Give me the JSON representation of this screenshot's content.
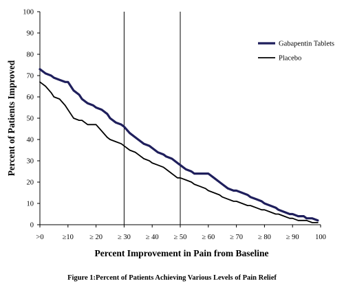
{
  "caption": "Figure 1:Percent of Patients Achieving Various Levels of Pain Relief",
  "chart_data": {
    "type": "line",
    "xlabel": "Percent Improvement in Pain from Baseline",
    "ylabel": "Percent of Patients Improved",
    "xlim": [
      0,
      100
    ],
    "ylim": [
      0,
      100
    ],
    "x_ticks": [
      0,
      10,
      20,
      30,
      40,
      50,
      60,
      70,
      80,
      90,
      100
    ],
    "x_tick_labels": [
      ">0",
      "≥10",
      "≥ 20",
      "≥ 30",
      "≥ 40",
      "≥ 50",
      "≥ 60",
      "≥ 70",
      "≥ 80",
      "≥ 90",
      "100"
    ],
    "y_ticks": [
      0,
      10,
      20,
      30,
      40,
      50,
      60,
      70,
      80,
      90,
      100
    ],
    "reference_lines_x": [
      30,
      50
    ],
    "legend_position": "top-right",
    "series": [
      {
        "name": "Gabapentin Tablets",
        "color": "#1f1f5c",
        "x": [
          0,
          2,
          4,
          5,
          7,
          9,
          10,
          12,
          14,
          15,
          17,
          19,
          20,
          22,
          24,
          25,
          27,
          29,
          30,
          32,
          34,
          35,
          37,
          39,
          40,
          42,
          44,
          45,
          47,
          49,
          50,
          52,
          54,
          55,
          57,
          59,
          60,
          62,
          64,
          65,
          67,
          69,
          70,
          72,
          74,
          75,
          77,
          79,
          80,
          82,
          84,
          85,
          87,
          89,
          90,
          92,
          94,
          95,
          97,
          99
        ],
        "y": [
          73,
          71,
          70,
          69,
          68,
          67,
          67,
          63,
          61,
          59,
          57,
          56,
          55,
          54,
          52,
          50,
          48,
          47,
          46,
          43,
          41,
          40,
          38,
          37,
          36,
          34,
          33,
          32,
          31,
          29,
          28,
          26,
          25,
          24,
          24,
          24,
          24,
          22,
          20,
          19,
          17,
          16,
          16,
          15,
          14,
          13,
          12,
          11,
          10,
          9,
          8,
          7,
          6,
          5,
          5,
          4,
          4,
          3,
          3,
          2
        ]
      },
      {
        "name": "Placebo",
        "color": "#000000",
        "x": [
          0,
          2,
          4,
          5,
          7,
          9,
          10,
          12,
          14,
          15,
          17,
          19,
          20,
          22,
          24,
          25,
          27,
          29,
          30,
          32,
          34,
          35,
          37,
          39,
          40,
          42,
          44,
          45,
          47,
          49,
          50,
          52,
          54,
          55,
          57,
          59,
          60,
          62,
          64,
          65,
          67,
          69,
          70,
          72,
          74,
          75,
          77,
          79,
          80,
          82,
          84,
          85,
          87,
          89,
          90,
          92,
          94,
          95,
          97,
          99
        ],
        "y": [
          67,
          65,
          62,
          60,
          59,
          56,
          54,
          50,
          49,
          49,
          47,
          47,
          47,
          44,
          41,
          40,
          39,
          38,
          37,
          35,
          34,
          33,
          31,
          30,
          29,
          28,
          27,
          26,
          24,
          22,
          22,
          21,
          20,
          19,
          18,
          17,
          16,
          15,
          14,
          13,
          12,
          11,
          11,
          10,
          9,
          9,
          8,
          7,
          7,
          6,
          5,
          5,
          4,
          3,
          3,
          2,
          2,
          2,
          1,
          1
        ]
      }
    ]
  }
}
